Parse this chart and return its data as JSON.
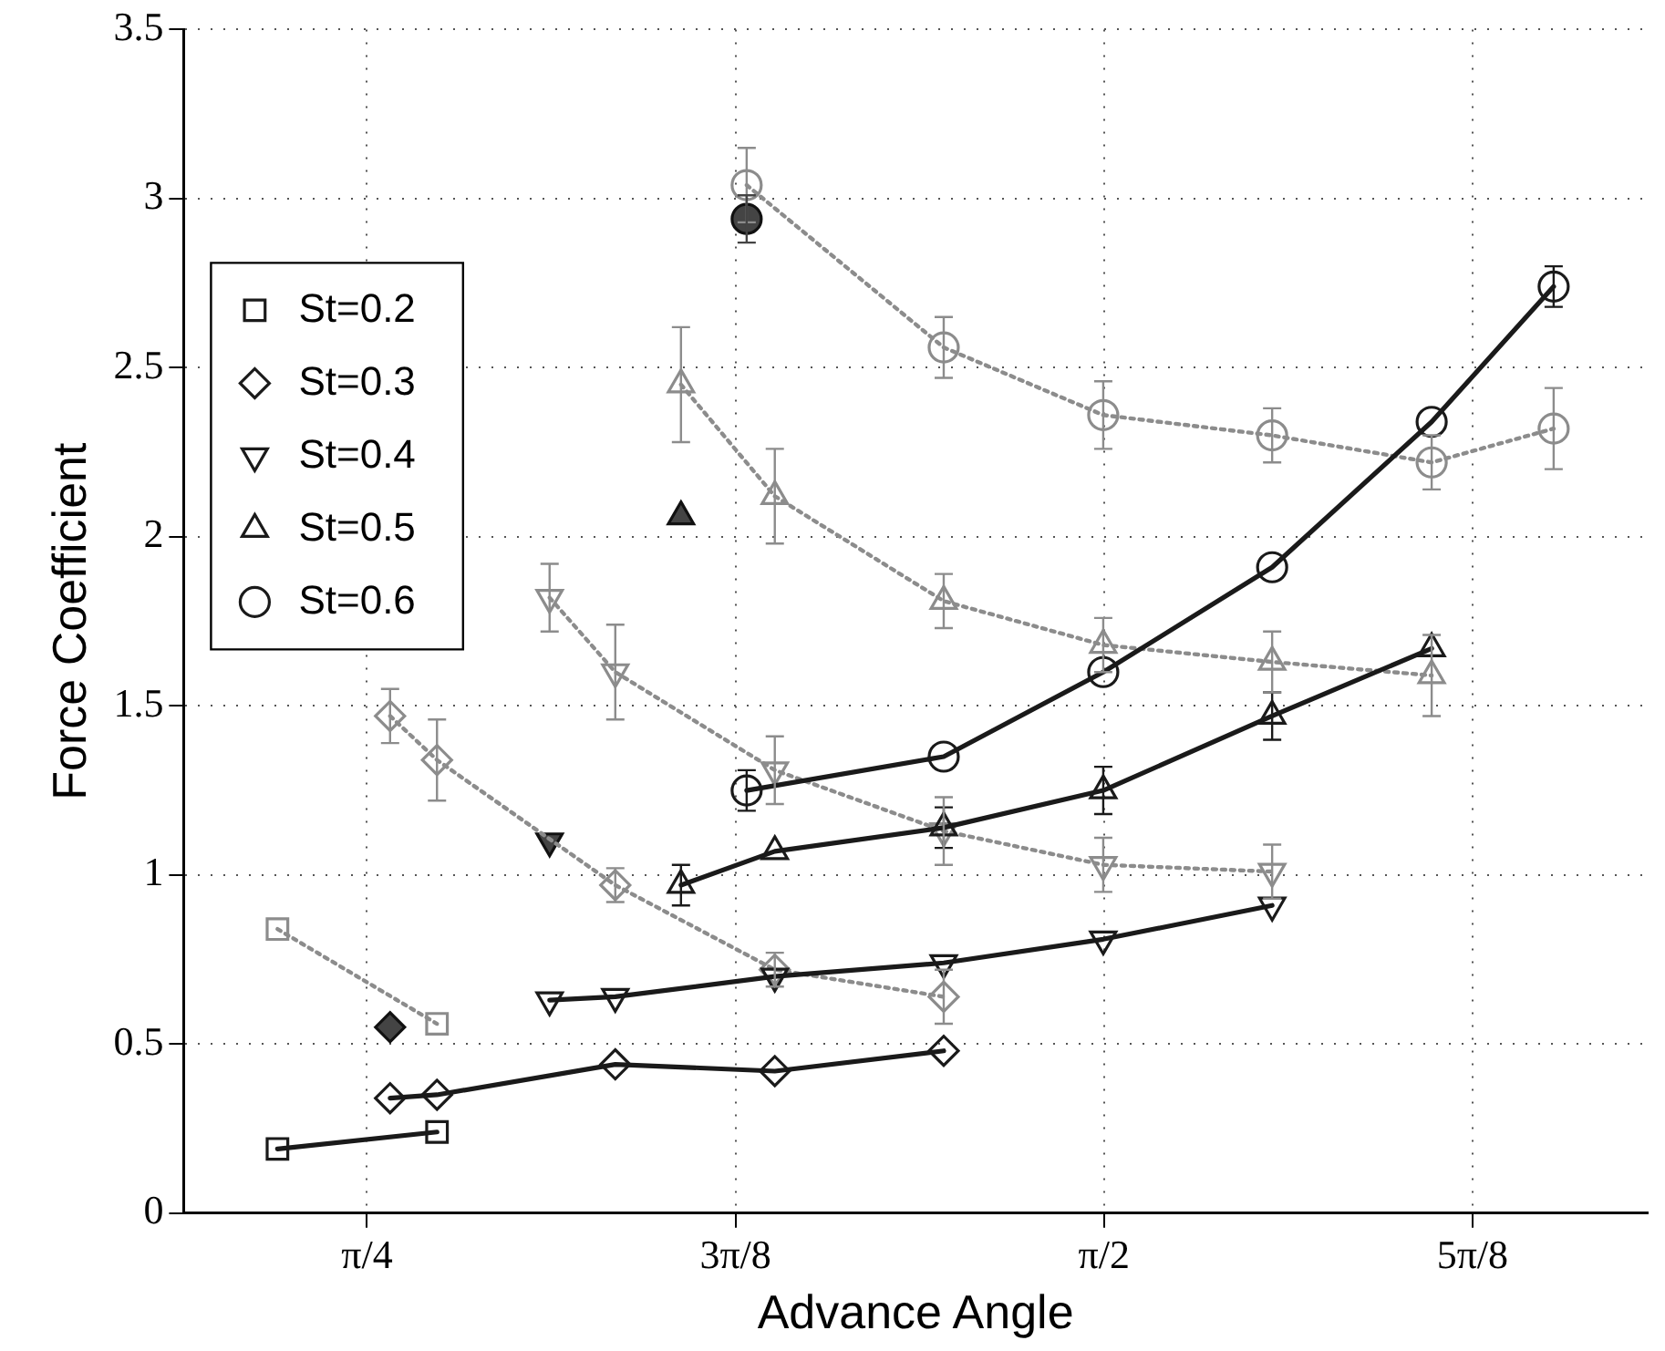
{
  "chart_data": {
    "type": "line",
    "xlabel": "Advance Angle",
    "ylabel": "Force Coefficient",
    "xlim": [
      0.59,
      2.15
    ],
    "ylim": [
      0,
      3.5
    ],
    "xticks": [
      {
        "value": 0.7854,
        "label": "π/4"
      },
      {
        "value": 1.1781,
        "label": "3π/8"
      },
      {
        "value": 1.5708,
        "label": "π/2"
      },
      {
        "value": 1.9635,
        "label": "5π/8"
      }
    ],
    "yticks": [
      0,
      0.5,
      1,
      1.5,
      2,
      2.5,
      3,
      3.5
    ],
    "grid": true,
    "legend": "top left",
    "series": [
      {
        "name": "St=0.2",
        "color": "#1a1a1a",
        "marker": "square",
        "line_style": "solid",
        "x": [
          0.69,
          0.86
        ],
        "values": [
          0.19,
          0.24
        ]
      },
      {
        "name": "St=0.3",
        "color": "#1a1a1a",
        "marker": "diamond",
        "line_style": "solid",
        "x": [
          0.81,
          0.86,
          1.05,
          1.22,
          1.4
        ],
        "values": [
          0.34,
          0.35,
          0.44,
          0.42,
          0.48
        ]
      },
      {
        "name": "St=0.4",
        "color": "#1a1a1a",
        "marker": "triangle_down",
        "line_style": "solid",
        "x": [
          0.98,
          1.05,
          1.22,
          1.4,
          1.57,
          1.75
        ],
        "values": [
          0.63,
          0.64,
          0.7,
          0.74,
          0.81,
          0.91
        ]
      },
      {
        "name": "St=0.5",
        "color": "#1a1a1a",
        "marker": "triangle",
        "line_style": "solid",
        "x": [
          1.12,
          1.22,
          1.4,
          1.57,
          1.75,
          1.92
        ],
        "values": [
          0.97,
          1.07,
          1.14,
          1.25,
          1.47,
          1.67
        ],
        "errors": [
          0.06,
          null,
          0.06,
          0.07,
          0.07,
          null
        ]
      },
      {
        "name": "St=0.6",
        "color": "#1a1a1a",
        "marker": "circle",
        "line_style": "solid",
        "x": [
          1.19,
          1.4,
          1.57,
          1.75,
          1.92,
          2.05
        ],
        "values": [
          1.25,
          1.35,
          1.6,
          1.91,
          2.34,
          2.74
        ],
        "errors": [
          0.06,
          null,
          null,
          null,
          null,
          0.06
        ]
      },
      {
        "color": "#8c8c8c",
        "marker": "square",
        "line_style": "dotted",
        "x": [
          0.69,
          0.86
        ],
        "values": [
          0.84,
          0.56
        ]
      },
      {
        "color": "#8c8c8c",
        "marker": "diamond",
        "line_style": "dotted",
        "x": [
          0.81,
          0.86,
          1.05,
          1.22,
          1.4
        ],
        "values": [
          1.47,
          1.34,
          0.97,
          0.72,
          0.64
        ],
        "errors": [
          0.08,
          0.12,
          0.05,
          0.05,
          0.08
        ]
      },
      {
        "color": "#8c8c8c",
        "marker": "triangle_down",
        "line_style": "dotted",
        "x": [
          0.98,
          1.05,
          1.22,
          1.4,
          1.57,
          1.75
        ],
        "values": [
          1.82,
          1.6,
          1.31,
          1.13,
          1.03,
          1.01
        ],
        "errors": [
          0.1,
          0.14,
          0.1,
          0.1,
          0.08,
          0.08
        ]
      },
      {
        "color": "#8c8c8c",
        "marker": "triangle",
        "line_style": "dotted",
        "x": [
          1.12,
          1.22,
          1.4,
          1.57,
          1.75,
          1.92
        ],
        "values": [
          2.45,
          2.12,
          1.81,
          1.68,
          1.63,
          1.59
        ],
        "errors": [
          0.17,
          0.14,
          0.08,
          0.08,
          0.09,
          0.12
        ]
      },
      {
        "color": "#8c8c8c",
        "marker": "circle",
        "line_style": "dotted",
        "x": [
          1.19,
          1.4,
          1.57,
          1.75,
          1.92,
          2.05
        ],
        "values": [
          3.04,
          2.56,
          2.36,
          2.3,
          2.22,
          2.32
        ],
        "errors": [
          0.11,
          0.09,
          0.1,
          0.08,
          0.08,
          0.12
        ]
      },
      {
        "type": "scatter",
        "color": "#444444",
        "marker": "diamond",
        "x": [
          0.81
        ],
        "values": [
          0.55
        ]
      },
      {
        "type": "scatter",
        "color": "#444444",
        "marker": "triangle_down",
        "x": [
          0.98
        ],
        "values": [
          1.1
        ]
      },
      {
        "type": "scatter",
        "color": "#444444",
        "marker": "triangle",
        "x": [
          1.12
        ],
        "values": [
          2.06
        ]
      },
      {
        "type": "scatter",
        "color": "#444444",
        "marker": "circle",
        "x": [
          1.19
        ],
        "values": [
          2.94
        ],
        "errors": [
          0.07
        ]
      }
    ]
  }
}
